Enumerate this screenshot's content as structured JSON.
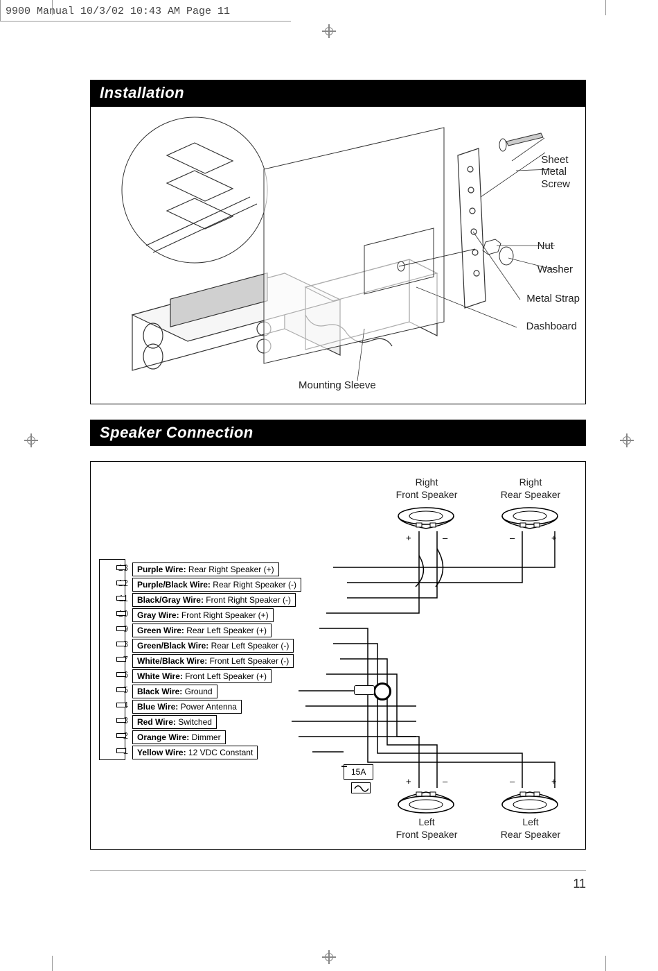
{
  "meta": {
    "header": "9900 Manual  10/3/02  10:43 AM  Page 11",
    "page_number": "11"
  },
  "sections": {
    "installation": {
      "title": "Installation",
      "labels": {
        "sheet_metal_screw": "Sheet\nMetal\nScrew",
        "nut": "Nut",
        "washer": "Washer",
        "metal_strap": "Metal Strap",
        "dashboard": "Dashboard",
        "mounting_sleeve": "Mounting Sleeve"
      }
    },
    "speaker": {
      "title": "Speaker Connection",
      "speakers": {
        "rf": "Right\nFront Speaker",
        "rr": "Right\nRear Speaker",
        "lf": "Left\nFront Speaker",
        "lr": "Left\nRear Speaker"
      },
      "fuse": "15A",
      "rows": [
        {
          "n": "13",
          "bold": "Purple Wire:",
          "rest": " Rear Right Speaker (+)"
        },
        {
          "n": "12",
          "bold": "Purple/Black Wire:",
          "rest": " Rear Right Speaker (-)"
        },
        {
          "n": "11",
          "bold": "Black/Gray Wire:",
          "rest": " Front Right Speaker (-)"
        },
        {
          "n": "10",
          "bold": "Gray Wire:",
          "rest": " Front Right Speaker (+)"
        },
        {
          "n": "9",
          "bold": "Green Wire:",
          "rest": " Rear Left Speaker (+)"
        },
        {
          "n": "8",
          "bold": "Green/Black Wire:",
          "rest": " Rear Left Speaker (-)"
        },
        {
          "n": "7",
          "bold": "White/Black Wire:",
          "rest": " Front Left Speaker (-)"
        },
        {
          "n": "6",
          "bold": "White Wire:",
          "rest": " Front Left Speaker (+)"
        },
        {
          "n": "5",
          "bold": "Black Wire:",
          "rest": " Ground"
        },
        {
          "n": "4",
          "bold": "Blue Wire:",
          "rest": " Power Antenna"
        },
        {
          "n": "3",
          "bold": "Red Wire:",
          "rest": " Switched"
        },
        {
          "n": "2",
          "bold": "Orange Wire:",
          "rest": " Dimmer"
        },
        {
          "n": "1",
          "bold": "Yellow Wire:",
          "rest": " 12 VDC Constant"
        }
      ]
    }
  },
  "style": {
    "section_bg": "#000000",
    "section_fg": "#ffffff",
    "section_fontsize": 22,
    "body_fontsize": 12,
    "label_fontsize": 15,
    "speaker_label_fontsize": 14
  }
}
